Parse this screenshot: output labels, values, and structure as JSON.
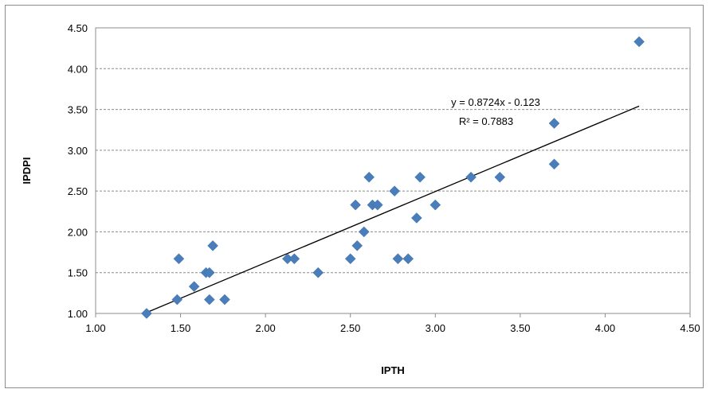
{
  "chart_data": {
    "type": "scatter",
    "title": "",
    "xlabel": "IPTH",
    "ylabel": "IPDPI",
    "xlim": [
      1.0,
      4.5
    ],
    "ylim": [
      1.0,
      4.5
    ],
    "xticks": [
      "1.00",
      "1.50",
      "2.00",
      "2.50",
      "3.00",
      "3.50",
      "4.00",
      "4.50"
    ],
    "yticks": [
      "1.00",
      "1.50",
      "2.00",
      "2.50",
      "3.00",
      "3.50",
      "4.00",
      "4.50"
    ],
    "grid": "horizontal dashed",
    "marker": "diamond",
    "marker_color": "#4a7ebb",
    "series": [
      {
        "points": [
          [
            1.3,
            1.0
          ],
          [
            1.48,
            1.17
          ],
          [
            1.49,
            1.67
          ],
          [
            1.58,
            1.33
          ],
          [
            1.65,
            1.5
          ],
          [
            1.67,
            1.17
          ],
          [
            1.67,
            1.5
          ],
          [
            1.69,
            1.83
          ],
          [
            1.76,
            1.17
          ],
          [
            2.13,
            1.67
          ],
          [
            2.17,
            1.67
          ],
          [
            2.31,
            1.5
          ],
          [
            2.5,
            1.67
          ],
          [
            2.53,
            2.33
          ],
          [
            2.54,
            1.83
          ],
          [
            2.58,
            2.0
          ],
          [
            2.61,
            2.67
          ],
          [
            2.63,
            2.33
          ],
          [
            2.66,
            2.33
          ],
          [
            2.76,
            2.5
          ],
          [
            2.78,
            1.67
          ],
          [
            2.84,
            1.67
          ],
          [
            2.89,
            2.17
          ],
          [
            2.91,
            2.67
          ],
          [
            3.0,
            2.33
          ],
          [
            3.21,
            2.67
          ],
          [
            3.38,
            2.67
          ],
          [
            3.7,
            3.33
          ],
          [
            3.7,
            2.83
          ],
          [
            4.2,
            4.33
          ]
        ]
      }
    ],
    "trendline": {
      "slope": 0.8724,
      "intercept": -0.123,
      "x_range": [
        1.3,
        4.2
      ],
      "color": "#000000",
      "equation": "y = 0.8724x - 0.123",
      "r2": "R² = 0.7883"
    }
  }
}
